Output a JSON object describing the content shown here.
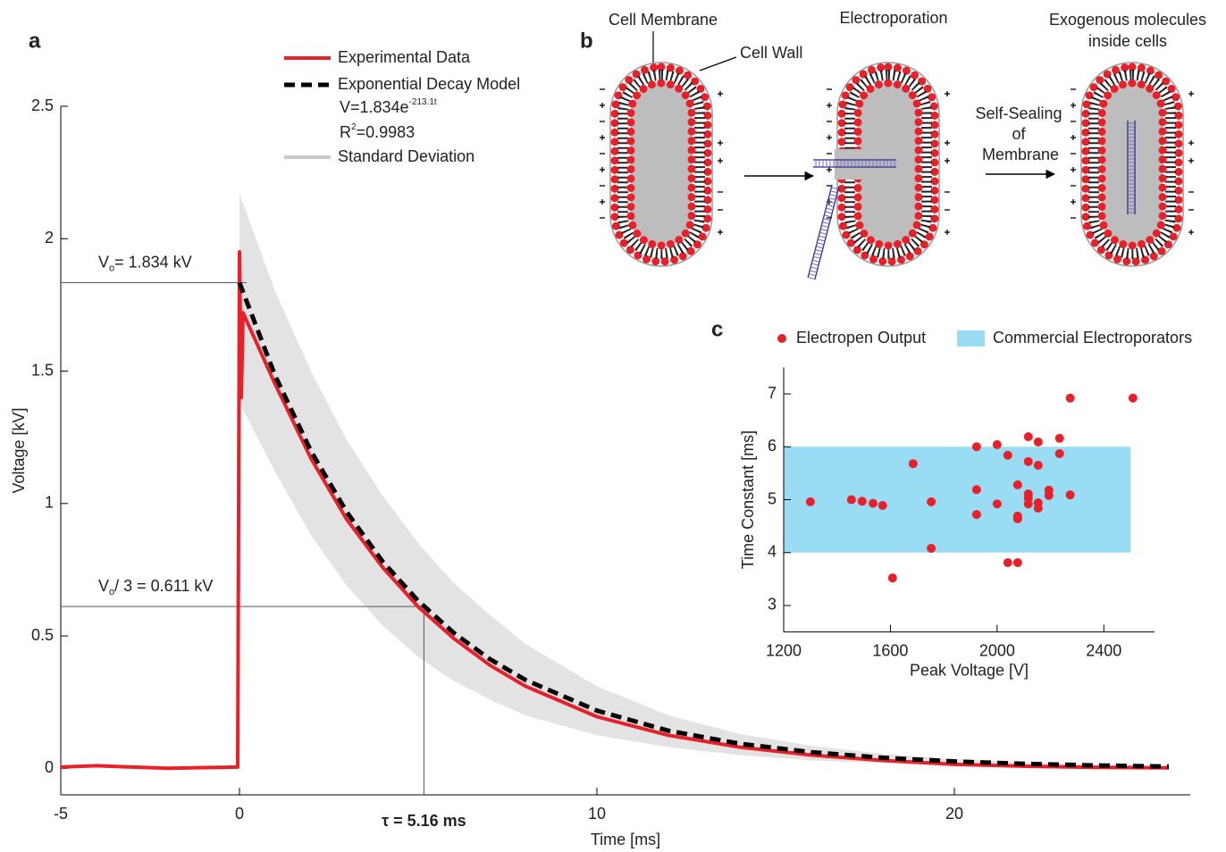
{
  "chart_data": [
    {
      "type": "line",
      "panel_label": "a",
      "xlabel": "Time [ms]",
      "ylabel": "Voltage [kV]",
      "xlim": [
        -5,
        26.6
      ],
      "ylim": [
        -0.1,
        2.5
      ],
      "xticks": [
        -5,
        0,
        10,
        20
      ],
      "yticks": [
        0,
        0.5,
        1,
        1.5,
        2,
        2.5
      ],
      "band": {
        "name": "Standard Deviation",
        "color": "#c8c8c8",
        "x": [
          0,
          1,
          2,
          3,
          4,
          5,
          6,
          7,
          8,
          10,
          12,
          14,
          16,
          18,
          20,
          22,
          24,
          26
        ],
        "upper": [
          2.17,
          1.8,
          1.5,
          1.24,
          1.03,
          0.85,
          0.7,
          0.58,
          0.47,
          0.31,
          0.2,
          0.13,
          0.085,
          0.055,
          0.035,
          0.022,
          0.014,
          0.009
        ],
        "lower": [
          1.38,
          1.12,
          0.88,
          0.69,
          0.54,
          0.42,
          0.33,
          0.26,
          0.2,
          0.125,
          0.08,
          0.05,
          0.03,
          0.02,
          0.012,
          0.007,
          0.004,
          0.002
        ]
      },
      "series": [
        {
          "name": "Experimental Data",
          "color": "#e8202a",
          "x": [
            -5,
            -4,
            -3,
            -2,
            -1,
            -0.05,
            0,
            0.05,
            0.1,
            1,
            2,
            3,
            4,
            5,
            6,
            7,
            8,
            10,
            12,
            14,
            16,
            18,
            20,
            22,
            24,
            26
          ],
          "values": [
            0.005,
            0.01,
            0.005,
            0,
            0.003,
            0.005,
            1.95,
            1.4,
            1.72,
            1.45,
            1.17,
            0.94,
            0.76,
            0.61,
            0.49,
            0.39,
            0.31,
            0.195,
            0.125,
            0.08,
            0.05,
            0.03,
            0.015,
            0.008,
            0.004,
            0.002
          ]
        },
        {
          "name": "Exponential Decay Model",
          "color": "#000000",
          "dashed": true,
          "x": [
            0,
            1,
            2,
            3,
            4,
            5,
            6,
            7,
            8,
            10,
            12,
            14,
            16,
            18,
            20,
            22,
            24,
            26
          ],
          "values": [
            1.834,
            1.482,
            1.198,
            0.968,
            0.782,
            0.632,
            0.511,
            0.413,
            0.334,
            0.218,
            0.142,
            0.093,
            0.061,
            0.04,
            0.026,
            0.017,
            0.011,
            0.007
          ]
        }
      ],
      "equation": [
        "V=1.834e",
        "-213.1t"
      ],
      "r_squared": [
        "R",
        "2",
        "=0.9983"
      ],
      "v0": {
        "value": 1.834,
        "label": [
          "V",
          "o",
          "= 1.834 kV"
        ]
      },
      "v0_third": {
        "value": 0.611,
        "label": [
          "V",
          "o",
          "/ 3 = 0.611 kV"
        ]
      },
      "tau": {
        "value": 5.16,
        "label": "τ = 5.16 ms"
      }
    },
    {
      "type": "scatter",
      "panel_label": "c",
      "xlabel": "Peak Voltage [V]",
      "ylabel": "Time Constant [ms]",
      "xlim": [
        1200,
        2590
      ],
      "ylim": [
        2.5,
        7.5
      ],
      "xticks": [
        1200,
        1600,
        2000,
        2400
      ],
      "yticks": [
        3,
        4,
        5,
        6,
        7
      ],
      "range_band": {
        "name": "Commercial Electroporators",
        "color": "#9bdcf5",
        "xlim": [
          1200,
          2500
        ],
        "ylim": [
          4,
          6
        ]
      },
      "series": [
        {
          "name": "Electropen Output",
          "color": "#e8202a",
          "x": [
            1300,
            1454,
            1494,
            1535,
            1571,
            1608,
            1685,
            1753,
            1753,
            1923,
            1923,
            1923,
            2000,
            2000,
            2040,
            2040,
            2077,
            2077,
            2077,
            2077,
            2117,
            2117,
            2117,
            2117,
            2117,
            2154,
            2154,
            2154,
            2154,
            2194,
            2194,
            2234,
            2234,
            2274,
            2274,
            2509
          ],
          "values": [
            4.96,
            5.0,
            4.97,
            4.93,
            4.89,
            3.52,
            5.68,
            4.96,
            4.08,
            6.0,
            5.19,
            4.72,
            6.04,
            4.92,
            5.84,
            3.81,
            5.28,
            4.69,
            4.64,
            3.81,
            6.19,
            5.72,
            5.11,
            5.03,
            4.92,
            6.09,
            5.65,
            4.94,
            4.84,
            5.18,
            5.08,
            6.16,
            5.87,
            6.92,
            5.09,
            6.92
          ]
        }
      ]
    }
  ],
  "diagram": {
    "panel_label": "b",
    "labels": {
      "cell_membrane": "Cell Membrane",
      "cell_wall": "Cell Wall",
      "electroporation": "Electroporation",
      "exogenous": [
        "Exogenous molecules",
        "inside cells"
      ],
      "self_sealing": [
        "Self-Sealing",
        "of",
        "Membrane"
      ]
    }
  }
}
